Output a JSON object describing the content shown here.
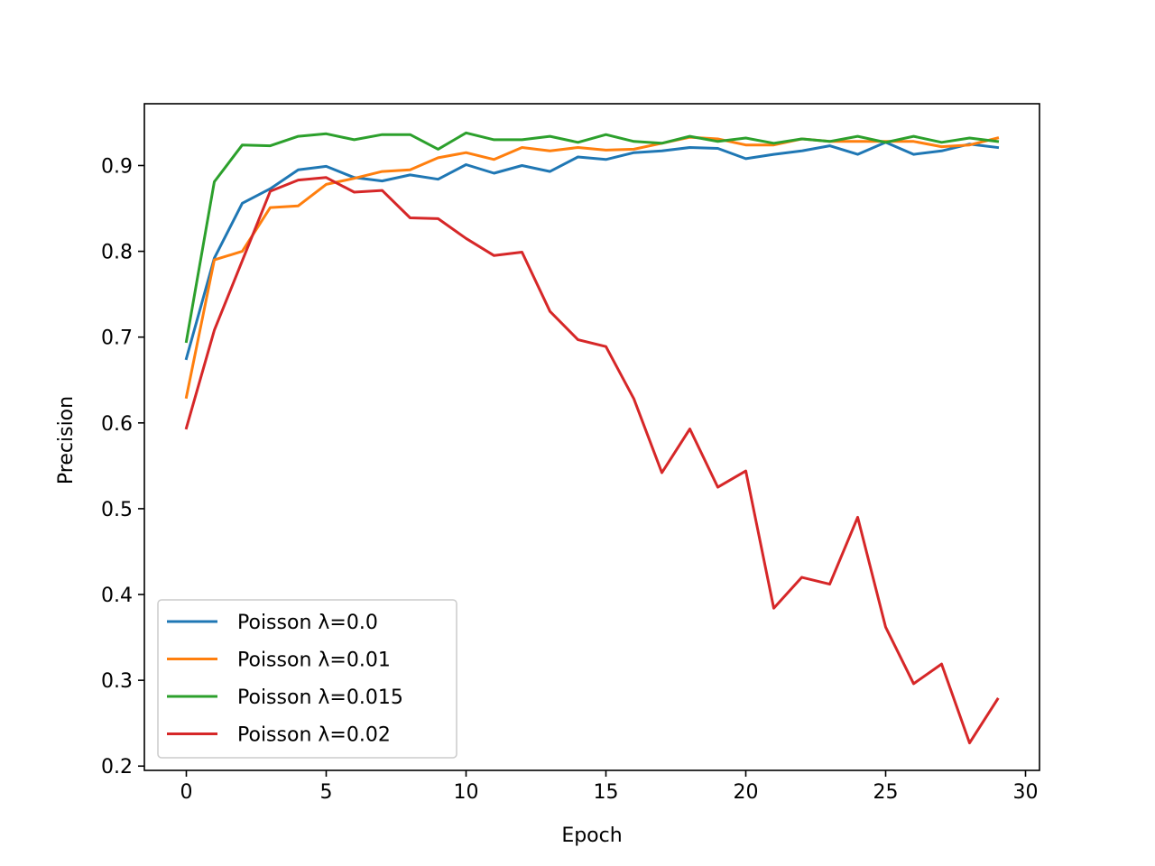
{
  "chart_data": {
    "type": "line",
    "title": "",
    "xlabel": "Epoch",
    "ylabel": "Precision",
    "xlim": [
      -1.5,
      30.5
    ],
    "ylim": [
      0.195,
      0.972
    ],
    "xticks": [
      0,
      5,
      10,
      15,
      20,
      25,
      30
    ],
    "yticks": [
      0.2,
      0.3,
      0.4,
      0.5,
      0.6,
      0.7,
      0.8,
      0.9
    ],
    "grid": false,
    "legend_position": "lower-left",
    "x": [
      0,
      1,
      2,
      3,
      4,
      5,
      6,
      7,
      8,
      9,
      10,
      11,
      12,
      13,
      14,
      15,
      16,
      17,
      18,
      19,
      20,
      21,
      22,
      23,
      24,
      25,
      26,
      27,
      28,
      29
    ],
    "series": [
      {
        "name": "Poisson λ=0.0",
        "color": "#1f77b4",
        "values": [
          0.675,
          0.792,
          0.856,
          0.873,
          0.895,
          0.899,
          0.886,
          0.882,
          0.889,
          0.884,
          0.901,
          0.891,
          0.9,
          0.893,
          0.91,
          0.907,
          0.915,
          0.917,
          0.921,
          0.92,
          0.908,
          0.913,
          0.917,
          0.923,
          0.913,
          0.927,
          0.913,
          0.917,
          0.925,
          0.921
        ]
      },
      {
        "name": "Poisson λ=0.01",
        "color": "#ff7f0e",
        "values": [
          0.63,
          0.79,
          0.8,
          0.851,
          0.853,
          0.878,
          0.885,
          0.893,
          0.895,
          0.909,
          0.915,
          0.907,
          0.921,
          0.917,
          0.921,
          0.918,
          0.919,
          0.926,
          0.933,
          0.931,
          0.924,
          0.924,
          0.931,
          0.928,
          0.928,
          0.928,
          0.928,
          0.922,
          0.924,
          0.932
        ]
      },
      {
        "name": "Poisson λ=0.015",
        "color": "#2ca02c",
        "values": [
          0.695,
          0.881,
          0.924,
          0.923,
          0.934,
          0.937,
          0.93,
          0.936,
          0.936,
          0.919,
          0.938,
          0.93,
          0.93,
          0.934,
          0.927,
          0.936,
          0.928,
          0.926,
          0.934,
          0.928,
          0.932,
          0.926,
          0.931,
          0.928,
          0.934,
          0.927,
          0.934,
          0.927,
          0.932,
          0.928
        ]
      },
      {
        "name": "Poisson λ=0.02",
        "color": "#d62728",
        "values": [
          0.594,
          0.708,
          0.789,
          0.87,
          0.883,
          0.886,
          0.869,
          0.871,
          0.839,
          0.838,
          0.815,
          0.795,
          0.799,
          0.73,
          0.697,
          0.689,
          0.628,
          0.542,
          0.593,
          0.525,
          0.544,
          0.384,
          0.42,
          0.412,
          0.49,
          0.362,
          0.296,
          0.319,
          0.227,
          0.278
        ]
      }
    ]
  }
}
